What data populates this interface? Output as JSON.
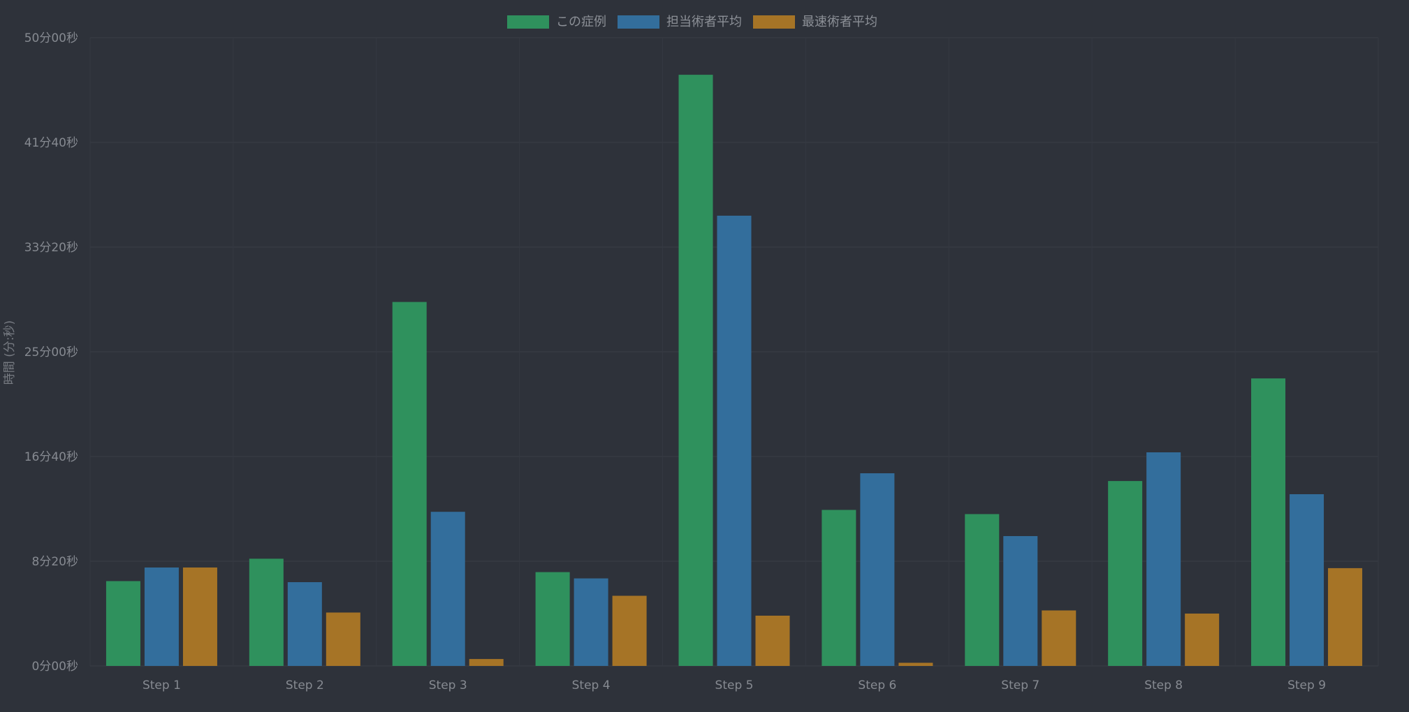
{
  "chart_data": {
    "type": "bar",
    "title": "",
    "xlabel": "",
    "ylabel": "時間 (分:秒)",
    "ylim": [
      0,
      3000
    ],
    "y_ticks": [
      {
        "value": 0,
        "label": "0分00秒"
      },
      {
        "value": 500,
        "label": "8分20秒"
      },
      {
        "value": 1000,
        "label": "16分40秒"
      },
      {
        "value": 1500,
        "label": "25分00秒"
      },
      {
        "value": 2000,
        "label": "33分20秒"
      },
      {
        "value": 2500,
        "label": "41分40秒"
      },
      {
        "value": 3000,
        "label": "50分00秒"
      }
    ],
    "categories": [
      "Step 1",
      "Step 2",
      "Step 3",
      "Step 4",
      "Step 5",
      "Step 6",
      "Step 7",
      "Step 8",
      "Step 9"
    ],
    "series": [
      {
        "name": "この症例",
        "color": "#2f915d",
        "values": [
          405,
          512,
          1738,
          448,
          2823,
          745,
          725,
          883,
          1373
        ]
      },
      {
        "name": "担当術者平均",
        "color": "#336e9c",
        "values": [
          470,
          400,
          736,
          418,
          2150,
          920,
          620,
          1020,
          820
        ]
      },
      {
        "name": "最速術者平均",
        "color": "#a67426",
        "values": [
          470,
          255,
          33,
          335,
          240,
          15,
          265,
          250,
          467
        ]
      }
    ],
    "grid": true,
    "legend": "top-center"
  }
}
